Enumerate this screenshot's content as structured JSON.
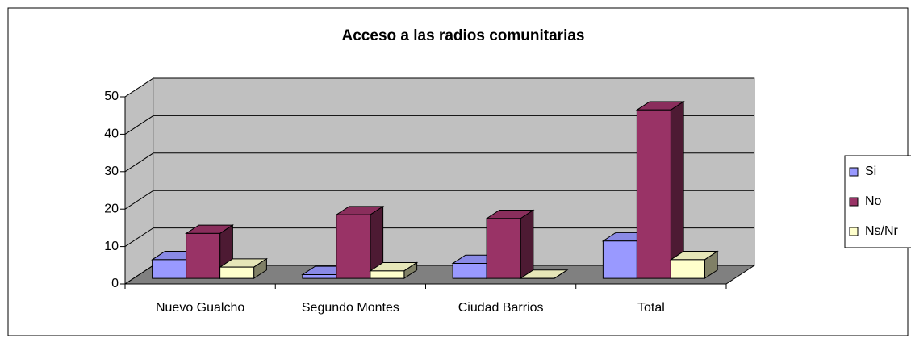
{
  "chart_data": {
    "type": "bar",
    "title": "Acceso a las radios comunitarias",
    "categories": [
      "Nuevo Gualcho",
      "Segundo Montes",
      "Ciudad Barrios",
      "Total"
    ],
    "series": [
      {
        "name": "Si",
        "color": "#9999ff",
        "values": [
          5,
          1,
          4,
          10
        ]
      },
      {
        "name": "No",
        "color": "#993366",
        "values": [
          12,
          17,
          16,
          45
        ]
      },
      {
        "name": "Ns/Nr",
        "color": "#ffffcc",
        "values": [
          3,
          2,
          0,
          5
        ]
      }
    ],
    "ylim": [
      0,
      50
    ],
    "yticks": [
      0,
      10,
      20,
      30,
      40,
      50
    ],
    "grid": true,
    "legend": "right"
  }
}
